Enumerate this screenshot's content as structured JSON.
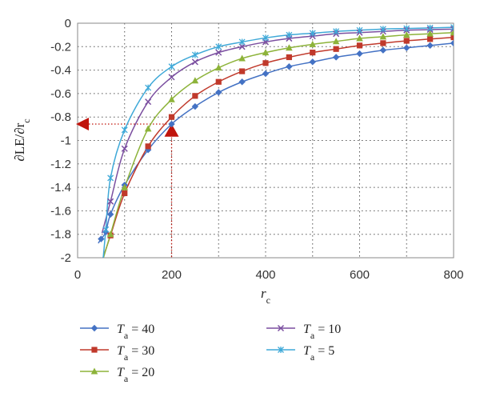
{
  "chart_data": {
    "type": "line",
    "ylabel": "∂LE/∂r",
    "ylabel_sub": "c",
    "xlabel": "r",
    "xlabel_sub": "c",
    "xlim": [
      0,
      800
    ],
    "ylim": [
      -2,
      0
    ],
    "xticks": [
      0,
      200,
      400,
      600,
      800
    ],
    "yticks": [
      0,
      -0.2,
      -0.4,
      -0.6,
      -0.8,
      -1,
      -1.2,
      -1.4,
      -1.6,
      -1.8,
      -2
    ],
    "grid": "dotted",
    "legend_position": "bottom",
    "series": [
      {
        "name": "T",
        "name_sub": "a",
        "name_value": "= 40",
        "color": "#4472C4",
        "marker": "diamond",
        "x": [
          50,
          60,
          70,
          100,
          150,
          200,
          250,
          300,
          350,
          400,
          450,
          500,
          550,
          600,
          650,
          700,
          750,
          800
        ],
        "y": [
          -1.84,
          -1.78,
          -1.63,
          -1.38,
          -1.08,
          -0.86,
          -0.71,
          -0.59,
          -0.5,
          -0.43,
          -0.37,
          -0.33,
          -0.29,
          -0.26,
          -0.23,
          -0.21,
          -0.19,
          -0.17
        ]
      },
      {
        "name": "T",
        "name_sub": "a",
        "name_value": "= 30",
        "color": "#C0392B",
        "marker": "square",
        "x": [
          70,
          100,
          150,
          200,
          250,
          300,
          350,
          400,
          450,
          500,
          550,
          600,
          650,
          700,
          750,
          800
        ],
        "y": [
          -1.81,
          -1.45,
          -1.05,
          -0.8,
          -0.62,
          -0.5,
          -0.41,
          -0.34,
          -0.29,
          -0.25,
          -0.22,
          -0.19,
          -0.17,
          -0.15,
          -0.135,
          -0.12
        ]
      },
      {
        "name": "T",
        "name_sub": "a",
        "name_value": "= 20",
        "color": "#8DB33A",
        "marker": "triangle",
        "x": [
          70,
          100,
          150,
          200,
          250,
          300,
          350,
          400,
          450,
          500,
          550,
          600,
          650,
          700,
          750,
          800
        ],
        "y": [
          -1.8,
          -1.4,
          -0.9,
          -0.65,
          -0.49,
          -0.38,
          -0.3,
          -0.25,
          -0.21,
          -0.18,
          -0.155,
          -0.13,
          -0.115,
          -0.1,
          -0.09,
          -0.08
        ]
      },
      {
        "name": "T",
        "name_sub": "a",
        "name_value": "= 10",
        "color": "#7B4FA0",
        "marker": "x",
        "x": [
          70,
          100,
          150,
          200,
          250,
          300,
          350,
          400,
          450,
          500,
          550,
          600,
          650,
          700,
          750,
          800
        ],
        "y": [
          -1.52,
          -1.07,
          -0.67,
          -0.46,
          -0.33,
          -0.25,
          -0.2,
          -0.16,
          -0.13,
          -0.11,
          -0.09,
          -0.08,
          -0.07,
          -0.06,
          -0.055,
          -0.05
        ]
      },
      {
        "name": "T",
        "name_sub": "a",
        "name_value": "= 5",
        "color": "#3FA9D8",
        "marker": "star",
        "x": [
          60,
          70,
          100,
          150,
          200,
          250,
          300,
          350,
          400,
          450,
          500,
          550,
          600,
          650,
          700,
          750,
          800
        ],
        "y": [
          -1.76,
          -1.32,
          -0.91,
          -0.55,
          -0.37,
          -0.27,
          -0.2,
          -0.16,
          -0.125,
          -0.1,
          -0.085,
          -0.07,
          -0.06,
          -0.05,
          -0.045,
          -0.04,
          -0.035
        ]
      }
    ],
    "annotation": {
      "color": "#C0140C",
      "marker_x": 200,
      "marker_y": -0.92,
      "arrow_y": -0.86
    }
  }
}
